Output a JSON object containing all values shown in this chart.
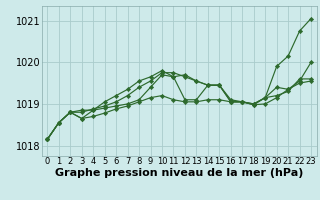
{
  "bg_color": "#ceeaea",
  "grid_color": "#aacccc",
  "line_color": "#2d6a2d",
  "marker_color": "#2d6a2d",
  "xlabel": "Graphe pression niveau de la mer (hPa)",
  "xlabel_fontsize": 8,
  "tick_fontsize": 6,
  "ylim": [
    1017.75,
    1021.35
  ],
  "xlim": [
    -0.5,
    23.5
  ],
  "yticks": [
    1018,
    1019,
    1020,
    1021
  ],
  "xticks": [
    0,
    1,
    2,
    3,
    4,
    5,
    6,
    7,
    8,
    9,
    10,
    11,
    12,
    13,
    14,
    15,
    16,
    17,
    18,
    19,
    20,
    21,
    22,
    23
  ],
  "series": [
    [
      1018.15,
      1018.55,
      1018.8,
      1018.85,
      1018.85,
      1018.9,
      1018.95,
      1019.0,
      1019.1,
      1019.4,
      1019.7,
      1019.65,
      1019.7,
      1019.55,
      1019.45,
      1019.45,
      1019.1,
      1019.05,
      1019.0,
      1019.15,
      1019.9,
      1020.15,
      1020.75,
      1021.05
    ],
    [
      1018.15,
      1018.55,
      1018.8,
      1018.65,
      1018.7,
      1018.78,
      1018.88,
      1018.95,
      1019.05,
      1019.15,
      1019.2,
      1019.1,
      1019.05,
      1019.05,
      1019.1,
      1019.1,
      1019.05,
      1019.05,
      1019.0,
      1019.15,
      1019.2,
      1019.3,
      1019.6,
      1019.6
    ],
    [
      1018.15,
      1018.55,
      1018.8,
      1018.65,
      1018.85,
      1019.05,
      1019.2,
      1019.35,
      1019.55,
      1019.65,
      1019.8,
      1019.65,
      1019.1,
      1019.1,
      1019.45,
      1019.45,
      1019.05,
      1019.05,
      1018.98,
      1019.0,
      1019.15,
      1019.35,
      1019.5,
      1019.55
    ],
    [
      1018.15,
      1018.55,
      1018.8,
      1018.8,
      1018.88,
      1018.95,
      1019.05,
      1019.2,
      1019.4,
      1019.55,
      1019.75,
      1019.75,
      1019.65,
      1019.55,
      1019.45,
      1019.45,
      1019.05,
      1019.05,
      1018.98,
      1019.15,
      1019.4,
      1019.35,
      1019.55,
      1020.0
    ]
  ]
}
